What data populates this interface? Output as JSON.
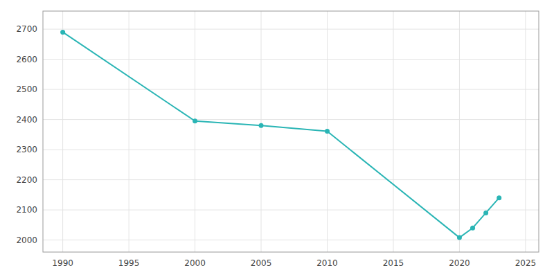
{
  "chart_data": {
    "type": "line",
    "x": [
      1990,
      2000,
      2005,
      2010,
      2020,
      2021,
      2022,
      2023
    ],
    "values": [
      2690,
      2395,
      2380,
      2361,
      2008,
      2040,
      2090,
      2140
    ],
    "color": "#2ab5b5",
    "marker": "circle",
    "xlim": [
      1988.5,
      2026
    ],
    "ylim": [
      1960,
      2760
    ],
    "xticks": [
      1990,
      1995,
      2000,
      2005,
      2010,
      2015,
      2020,
      2025
    ],
    "yticks": [
      2000,
      2100,
      2200,
      2300,
      2400,
      2500,
      2600,
      2700
    ],
    "grid": true
  }
}
